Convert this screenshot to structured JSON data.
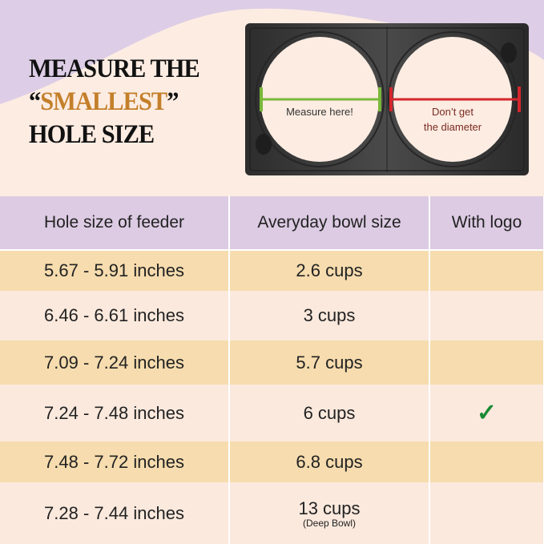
{
  "headline": {
    "line1": "MEASURE THE",
    "quote_open": "“",
    "accent_word": "SMALLEST",
    "quote_close": "”",
    "line3": "HOLE SIZE"
  },
  "diagram": {
    "good_label": "Measure here!",
    "bad_label_line1": "Don’t get",
    "bad_label_line2": "the diameter"
  },
  "colors": {
    "lavender": "#dccbe3",
    "cream": "#fcece2",
    "orange_row": "#f6dcae",
    "accent": "#c47f2a",
    "good": "#7ab83a",
    "bad": "#d4262c",
    "check": "#1a8a35"
  },
  "table": {
    "headers": [
      "Hole size of feeder",
      "Averyday bowl size",
      "With logo"
    ],
    "rows": [
      {
        "hole": "5.67 - 5.91  inches",
        "bowl": "2.6 cups",
        "note": "",
        "logo": ""
      },
      {
        "hole": "6.46 - 6.61 inches",
        "bowl": "3 cups",
        "note": "",
        "logo": ""
      },
      {
        "hole": "7.09 - 7.24 inches",
        "bowl": "5.7 cups",
        "note": "",
        "logo": ""
      },
      {
        "hole": "7.24 - 7.48 inches",
        "bowl": "6 cups",
        "note": "",
        "logo": "✓"
      },
      {
        "hole": "7.48 - 7.72 inches",
        "bowl": "6.8 cups",
        "note": "",
        "logo": ""
      },
      {
        "hole": "7.28 - 7.44 inches",
        "bowl": "13 cups",
        "note": "(Deep Bowl)",
        "logo": ""
      }
    ]
  }
}
